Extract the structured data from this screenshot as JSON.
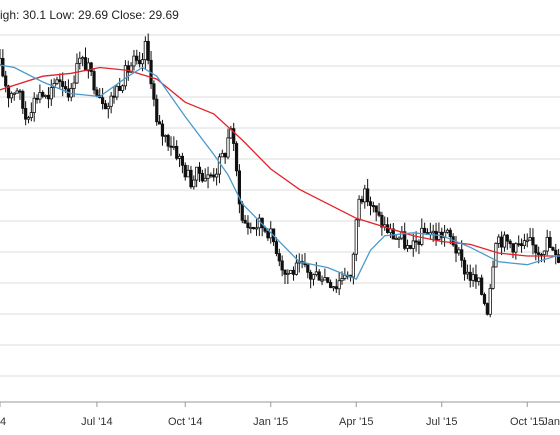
{
  "readout": {
    "text": "igh: 30.1 Low: 29.69 Close: 29.69"
  },
  "colors": {
    "background": "#ffffff",
    "grid": "#dddddd",
    "candle": "#111111",
    "ma_long": "#e2232a",
    "ma_short": "#4a9acd",
    "axis_text": "#333333"
  },
  "chart_data": {
    "type": "line",
    "title": "",
    "xlabel": "",
    "ylabel": "",
    "grid": true,
    "x_tick_labels": [
      "4",
      "Jul '14",
      "Oct '14",
      "Jan '15",
      "Apr '15",
      "Jul '15",
      "Oct '15",
      "Jan"
    ],
    "x_tick_months": [
      2.5,
      5.9,
      9,
      12,
      15,
      18,
      21,
      24
    ],
    "x_range_months": [
      2.4,
      24.1
    ],
    "y_range": [
      0,
      14
    ],
    "y_axis_labels_visible": false,
    "series": [
      {
        "style": "candlestick",
        "points": [
          {
            "t": 2.5,
            "v": 10.6
          },
          {
            "t": 2.8,
            "v": 9.6
          },
          {
            "t": 3.1,
            "v": 9.8
          },
          {
            "t": 3.4,
            "v": 8.8
          },
          {
            "t": 3.6,
            "v": 9.2
          },
          {
            "t": 3.9,
            "v": 9.7
          },
          {
            "t": 4.2,
            "v": 9.3
          },
          {
            "t": 4.5,
            "v": 10.2
          },
          {
            "t": 4.7,
            "v": 10.0
          },
          {
            "t": 5.0,
            "v": 9.6
          },
          {
            "t": 5.2,
            "v": 10.8
          },
          {
            "t": 5.5,
            "v": 10.6
          },
          {
            "t": 5.8,
            "v": 10.0
          },
          {
            "t": 6.0,
            "v": 9.6
          },
          {
            "t": 6.3,
            "v": 9.2
          },
          {
            "t": 6.6,
            "v": 9.8
          },
          {
            "t": 6.9,
            "v": 10.3
          },
          {
            "t": 7.2,
            "v": 10.7
          },
          {
            "t": 7.4,
            "v": 10.4
          },
          {
            "t": 7.6,
            "v": 11.2
          },
          {
            "t": 7.8,
            "v": 10.2
          },
          {
            "t": 8.0,
            "v": 8.5
          },
          {
            "t": 8.3,
            "v": 8.1
          },
          {
            "t": 8.6,
            "v": 7.8
          },
          {
            "t": 8.9,
            "v": 7.1
          },
          {
            "t": 9.2,
            "v": 6.6
          },
          {
            "t": 9.5,
            "v": 6.9
          },
          {
            "t": 9.8,
            "v": 6.7
          },
          {
            "t": 10.1,
            "v": 7.0
          },
          {
            "t": 10.4,
            "v": 7.6
          },
          {
            "t": 10.6,
            "v": 8.5
          },
          {
            "t": 11.0,
            "v": 5.2
          },
          {
            "t": 11.3,
            "v": 5.0
          },
          {
            "t": 11.6,
            "v": 5.1
          },
          {
            "t": 11.9,
            "v": 4.9
          },
          {
            "t": 12.2,
            "v": 4.3
          },
          {
            "t": 12.5,
            "v": 3.4
          },
          {
            "t": 12.8,
            "v": 3.5
          },
          {
            "t": 13.1,
            "v": 3.6
          },
          {
            "t": 13.4,
            "v": 3.3
          },
          {
            "t": 13.7,
            "v": 3.4
          },
          {
            "t": 14.0,
            "v": 3.2
          },
          {
            "t": 14.3,
            "v": 3.0
          },
          {
            "t": 14.6,
            "v": 3.5
          },
          {
            "t": 14.8,
            "v": 3.1
          },
          {
            "t": 15.1,
            "v": 6.2
          },
          {
            "t": 15.4,
            "v": 6.0
          },
          {
            "t": 15.7,
            "v": 5.4
          },
          {
            "t": 16.0,
            "v": 5.0
          },
          {
            "t": 16.3,
            "v": 4.7
          },
          {
            "t": 16.6,
            "v": 4.6
          },
          {
            "t": 16.9,
            "v": 4.1
          },
          {
            "t": 17.2,
            "v": 4.6
          },
          {
            "t": 17.5,
            "v": 4.9
          },
          {
            "t": 17.8,
            "v": 4.7
          },
          {
            "t": 18.1,
            "v": 4.8
          },
          {
            "t": 18.4,
            "v": 4.5
          },
          {
            "t": 18.7,
            "v": 3.7
          },
          {
            "t": 19.0,
            "v": 3.3
          },
          {
            "t": 19.3,
            "v": 3.0
          },
          {
            "t": 19.6,
            "v": 2.2
          },
          {
            "t": 19.9,
            "v": 4.7
          },
          {
            "t": 20.2,
            "v": 4.5
          },
          {
            "t": 20.5,
            "v": 4.4
          },
          {
            "t": 20.8,
            "v": 4.3
          },
          {
            "t": 21.1,
            "v": 4.4
          },
          {
            "t": 21.4,
            "v": 4.2
          },
          {
            "t": 21.7,
            "v": 4.5
          },
          {
            "t": 22.0,
            "v": 3.9
          },
          {
            "t": 22.3,
            "v": 4.1
          },
          {
            "t": 22.5,
            "v": 2.3
          },
          {
            "t": 22.8,
            "v": 3.9
          },
          {
            "t": 23.1,
            "v": 4.2
          },
          {
            "t": 23.4,
            "v": 4.0
          },
          {
            "t": 23.7,
            "v": 3.9
          },
          {
            "t": 24.0,
            "v": 4.0
          }
        ]
      },
      {
        "style": "line",
        "color": "#e2232a",
        "points": [
          {
            "t": 2.4,
            "v": 9.7
          },
          {
            "t": 4.0,
            "v": 10.2
          },
          {
            "t": 5.0,
            "v": 10.3
          },
          {
            "t": 6.0,
            "v": 10.5
          },
          {
            "t": 7.0,
            "v": 10.4
          },
          {
            "t": 8.0,
            "v": 10.1
          },
          {
            "t": 9.0,
            "v": 9.3
          },
          {
            "t": 10.0,
            "v": 8.9
          },
          {
            "t": 11.0,
            "v": 8.0
          },
          {
            "t": 12.0,
            "v": 7.0
          },
          {
            "t": 13.0,
            "v": 6.3
          },
          {
            "t": 14.0,
            "v": 5.8
          },
          {
            "t": 15.0,
            "v": 5.3
          },
          {
            "t": 16.0,
            "v": 5.0
          },
          {
            "t": 17.0,
            "v": 4.7
          },
          {
            "t": 18.0,
            "v": 4.5
          },
          {
            "t": 19.0,
            "v": 4.4
          },
          {
            "t": 20.0,
            "v": 4.1
          },
          {
            "t": 21.0,
            "v": 4.0
          },
          {
            "t": 22.0,
            "v": 4.0
          },
          {
            "t": 23.0,
            "v": 4.0
          },
          {
            "t": 24.1,
            "v": 4.0
          }
        ]
      },
      {
        "style": "line",
        "color": "#4a9acd",
        "points": [
          {
            "t": 2.4,
            "v": 10.6
          },
          {
            "t": 3.0,
            "v": 10.5
          },
          {
            "t": 4.0,
            "v": 10.0
          },
          {
            "t": 5.0,
            "v": 9.6
          },
          {
            "t": 6.0,
            "v": 9.5
          },
          {
            "t": 7.0,
            "v": 10.2
          },
          {
            "t": 7.5,
            "v": 10.5
          },
          {
            "t": 8.0,
            "v": 10.2
          },
          {
            "t": 9.0,
            "v": 8.8
          },
          {
            "t": 10.0,
            "v": 7.5
          },
          {
            "t": 10.5,
            "v": 6.8
          },
          {
            "t": 11.0,
            "v": 5.8
          },
          {
            "t": 12.0,
            "v": 4.8
          },
          {
            "t": 13.0,
            "v": 3.8
          },
          {
            "t": 14.0,
            "v": 3.6
          },
          {
            "t": 15.0,
            "v": 3.2
          },
          {
            "t": 15.5,
            "v": 4.2
          },
          {
            "t": 16.0,
            "v": 4.7
          },
          {
            "t": 17.0,
            "v": 4.8
          },
          {
            "t": 18.0,
            "v": 4.7
          },
          {
            "t": 19.0,
            "v": 4.3
          },
          {
            "t": 20.0,
            "v": 3.8
          },
          {
            "t": 21.0,
            "v": 3.7
          },
          {
            "t": 22.0,
            "v": 4.0
          },
          {
            "t": 23.0,
            "v": 4.0
          },
          {
            "t": 24.1,
            "v": 3.9
          }
        ]
      }
    ]
  }
}
